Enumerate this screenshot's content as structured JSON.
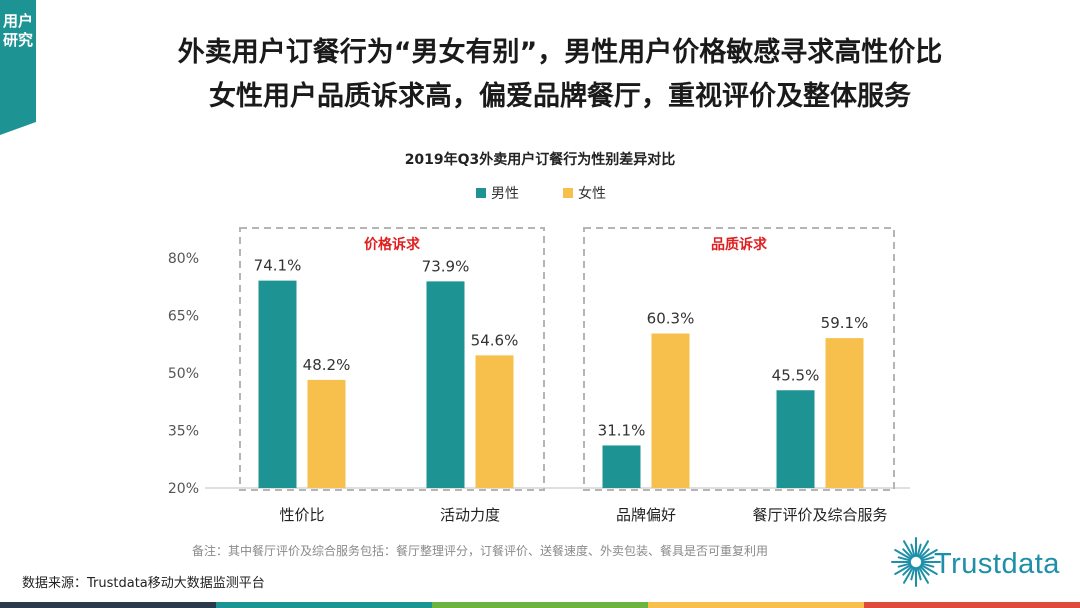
{
  "section_tag": [
    "用户",
    "研究"
  ],
  "headline": {
    "line1": "外卖用户订餐行为“男女有别”，男性用户价格敏感寻求高性价比",
    "line2": "女性用户品质诉求高，偏爱品牌餐厅，重视评价及整体服务"
  },
  "chart_data": {
    "type": "bar",
    "title": "2019年Q3外卖用户订餐行为性别差异对比",
    "categories": [
      "性价比",
      "活动力度",
      "品牌偏好",
      "餐厅评价及综合服务"
    ],
    "series": [
      {
        "name": "男性",
        "color": "#1e9393",
        "values": [
          74.1,
          73.9,
          31.1,
          45.5
        ]
      },
      {
        "name": "女性",
        "color": "#f7c04c",
        "values": [
          48.2,
          54.6,
          60.3,
          59.1
        ]
      }
    ],
    "value_suffix": "%",
    "yticks": [
      "20%",
      "35%",
      "50%",
      "65%",
      "80%"
    ],
    "ylim": [
      20,
      80
    ],
    "legend_position": "top-center",
    "groups": [
      {
        "label": "价格诉求",
        "categories": [
          0,
          1
        ]
      },
      {
        "label": "品质诉求",
        "categories": [
          2,
          3
        ]
      }
    ],
    "group_label_color": "#e02020"
  },
  "footnote": "备注：其中餐厅评价及综合服务包括：餐厅整理评分，订餐评价、送餐速度、外卖包装、餐具是否可重复利用",
  "source": "数据来源：Trustdata移动大数据监测平台",
  "logo": {
    "text": "Trustdata",
    "icon": "starburst-logo-icon",
    "color": "#1e8fa8"
  },
  "bottom_bar_colors": [
    "#2b3a4a",
    "#1e9393",
    "#6db33f",
    "#f7c04c",
    "#e04a3a"
  ]
}
